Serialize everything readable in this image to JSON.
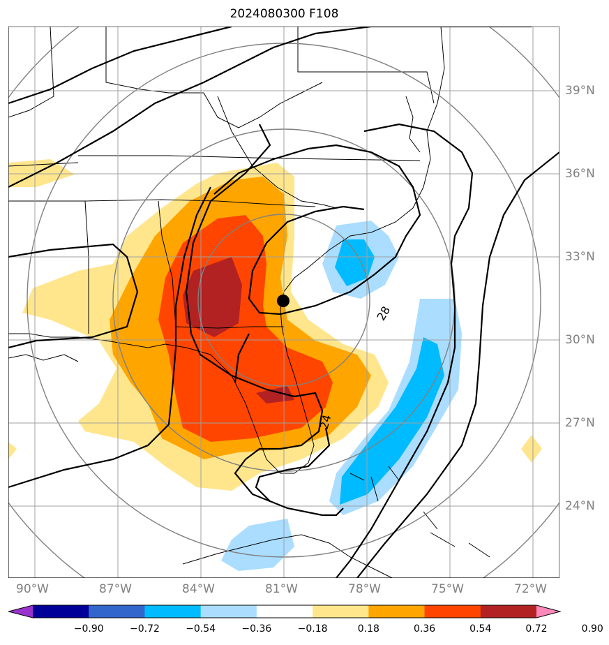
{
  "title": "2024080300 F108",
  "lon_labels": [
    "90°W",
    "87°W",
    "84°W",
    "81°W",
    "78°W",
    "75°W",
    "72°W"
  ],
  "lat_labels": [
    "39°N",
    "36°N",
    "33°N",
    "30°N",
    "27°N",
    "24°N"
  ],
  "contour_labels": [
    "28",
    "24"
  ],
  "colorbar": {
    "ticks": [
      "−0.90",
      "−0.72",
      "−0.54",
      "−0.36",
      "−0.18",
      "0.18",
      "0.36",
      "0.54",
      "0.72",
      "0.90"
    ],
    "colors": [
      "#9933cc",
      "#000099",
      "#3366cc",
      "#00bbff",
      "#aaddff",
      "#ffffff",
      "#ffe68c",
      "#ffa500",
      "#ff4500",
      "#b22222",
      "#ff88bb"
    ]
  },
  "colors": {
    "contour": "#000000",
    "grid": "#a0a0a0",
    "range_ring": "#808080",
    "center_marker": "#000000"
  }
}
